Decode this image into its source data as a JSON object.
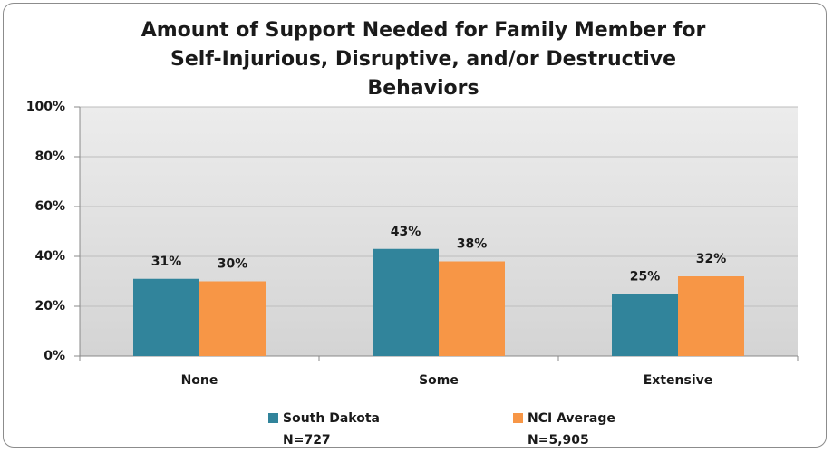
{
  "chart_data": {
    "type": "bar",
    "title": "Amount of Support Needed for Family Member for Self-Injurious, Disruptive, and/or Destructive Behaviors",
    "categories": [
      "None",
      "Some",
      "Extensive"
    ],
    "series": [
      {
        "name": "South Dakota",
        "note": "N=727",
        "color": "#31849b",
        "values": [
          31,
          43,
          25
        ],
        "value_labels": [
          "31%",
          "43%",
          "25%"
        ]
      },
      {
        "name": "NCI Average",
        "note": "N=5,905",
        "color": "#f79646",
        "values": [
          30,
          38,
          32
        ],
        "value_labels": [
          "30%",
          "38%",
          "32%"
        ]
      }
    ],
    "ylim": [
      0,
      100
    ],
    "yticks": [
      {
        "value": 0,
        "label": "0%"
      },
      {
        "value": 20,
        "label": "20%"
      },
      {
        "value": 40,
        "label": "40%"
      },
      {
        "value": 60,
        "label": "60%"
      },
      {
        "value": 80,
        "label": "80%"
      },
      {
        "value": 100,
        "label": "100%"
      }
    ],
    "grid": true,
    "legend": "bottom"
  }
}
